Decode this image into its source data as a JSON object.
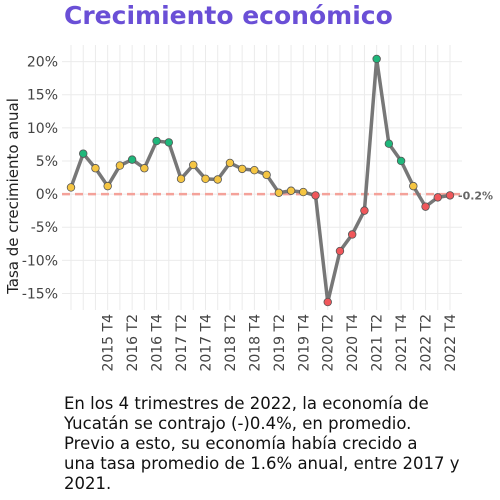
{
  "chart_data": {
    "type": "line",
    "title": "Crecimiento económico",
    "y_label": "Tasa de crecimiento anual",
    "categories": [
      null,
      null,
      null,
      "2015 T4",
      null,
      "2016 T2",
      null,
      "2016 T4",
      null,
      "2017 T2",
      null,
      "2017 T4",
      null,
      "2018 T2",
      null,
      "2018 T4",
      null,
      "2019 T2",
      null,
      "2019 T4",
      null,
      "2020 T2",
      null,
      "2020 T4",
      null,
      "2021 T2",
      null,
      "2021 T4",
      null,
      "2022 T2",
      null,
      "2022 T4"
    ],
    "series": [
      {
        "color": "#777777",
        "values": [
          1.0,
          6.1,
          3.9,
          1.2,
          4.3,
          5.2,
          3.9,
          8.0,
          7.8,
          2.3,
          4.4,
          2.3,
          2.2,
          4.7,
          3.8,
          3.6,
          2.9,
          0.2,
          0.5,
          0.3,
          -0.2,
          -16.3,
          -8.6,
          -6.1,
          -2.5,
          20.4,
          7.6,
          5.0,
          1.2,
          -1.9,
          -0.5,
          -0.2
        ],
        "value_labels": [
          null,
          null,
          null,
          null,
          null,
          null,
          null,
          null,
          null,
          null,
          null,
          null,
          null,
          null,
          null,
          null,
          null,
          null,
          null,
          null,
          null,
          null,
          null,
          null,
          null,
          null,
          null,
          null,
          null,
          null,
          null,
          "-0.2%"
        ],
        "point_colors": [
          "#f5c542",
          "#1fb77b",
          "#f5c542",
          "#f5c542",
          "#f5c542",
          "#1fb77b",
          "#f5c542",
          "#1fb77b",
          "#1fb77b",
          "#f5c542",
          "#f5c542",
          "#f5c542",
          "#f5c542",
          "#f5c542",
          "#f5c542",
          "#f5c542",
          "#f5c542",
          "#f5c542",
          "#f5c542",
          "#f5c542",
          "#f0575b",
          "#f0575b",
          "#f0575b",
          "#f0575b",
          "#f0575b",
          "#1fb77b",
          "#1fb77b",
          "#1fb77b",
          "#f5c542",
          "#f0575b",
          "#f0575b",
          "#f0575b"
        ]
      }
    ],
    "ylim": [
      -17.5,
      22.5
    ],
    "yticks": [
      {
        "value": -15,
        "label": "-15%"
      },
      {
        "value": -10,
        "label": "-10%"
      },
      {
        "value": -5,
        "label": "-5%"
      },
      {
        "value": 0,
        "label": "0%"
      },
      {
        "value": 5,
        "label": "5%"
      },
      {
        "value": 10,
        "label": "10%"
      },
      {
        "value": 15,
        "label": "15%"
      },
      {
        "value": 20,
        "label": "20%"
      }
    ],
    "grid": true,
    "zero_line_color": "#f4a29a",
    "title_color": "#6a4fd6",
    "note_lines": [
      "En los 4 trimestres de 2022, la economía de",
      "Yucatán se contrajo (-)0.4%, en promedio.",
      "Previo a esto, su economía había crecido a",
      "una tasa promedio de 1.6% anual, entre 2017 y",
      "2021."
    ]
  }
}
